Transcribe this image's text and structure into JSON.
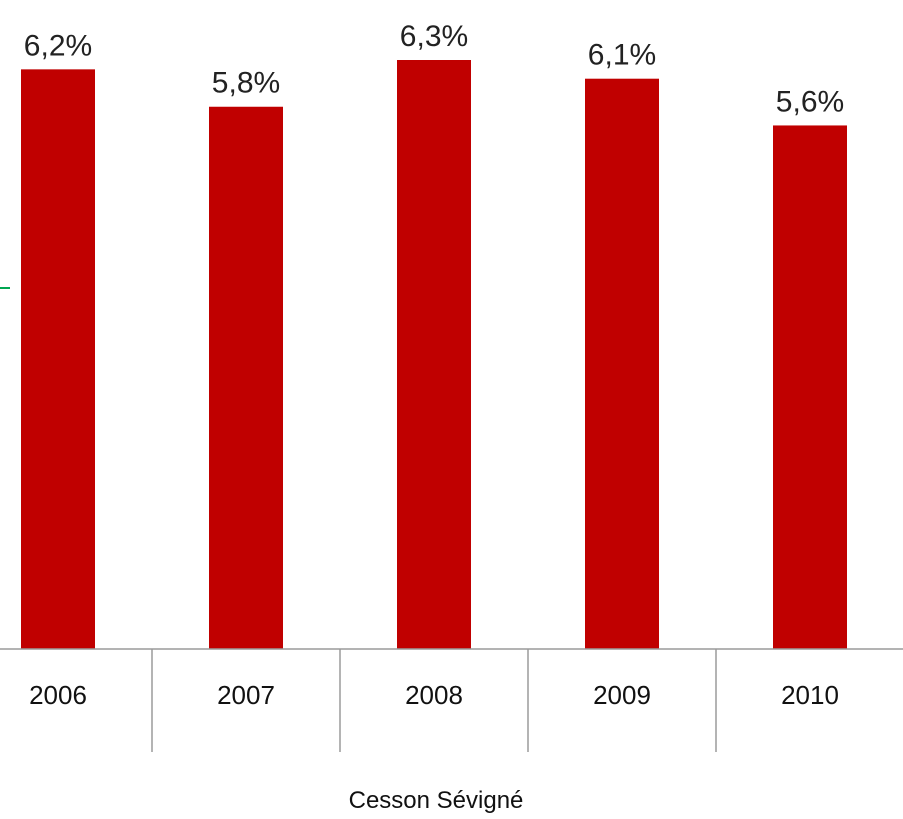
{
  "chart_data": {
    "type": "bar",
    "title": "",
    "xlabel": "",
    "ylabel": "",
    "categories": [
      "2006",
      "2007",
      "2008",
      "2009",
      "2010"
    ],
    "values": [
      6.2,
      5.8,
      6.3,
      6.1,
      5.6
    ],
    "value_labels": [
      "6,2%",
      "5,8%",
      "6,3%",
      "6,1%",
      "5,6%"
    ],
    "group_label": "Cesson Sévigné",
    "bar_color": "#C00000",
    "marker_color": "#00A651",
    "ylim": [
      0,
      6.3
    ],
    "grid": false,
    "legend": "none"
  }
}
